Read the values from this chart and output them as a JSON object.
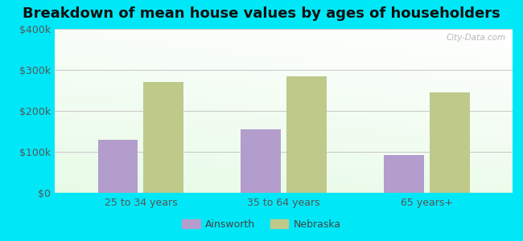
{
  "title": "Breakdown of mean house values by ages of householders",
  "categories": [
    "25 to 34 years",
    "35 to 64 years",
    "65 years+"
  ],
  "ainsworth_values": [
    130000,
    155000,
    93000
  ],
  "nebraska_values": [
    270000,
    285000,
    245000
  ],
  "ainsworth_color": "#b39dcc",
  "nebraska_color": "#bfc98a",
  "background_outer": "#00e8f8",
  "ylim": [
    0,
    400000
  ],
  "yticks": [
    0,
    100000,
    200000,
    300000,
    400000
  ],
  "ytick_labels": [
    "$0",
    "$100k",
    "$200k",
    "$300k",
    "$400k"
  ],
  "bar_width": 0.28,
  "legend_labels": [
    "Ainsworth",
    "Nebraska"
  ],
  "title_fontsize": 13,
  "tick_fontsize": 9,
  "legend_fontsize": 9,
  "watermark": "City-Data.com"
}
